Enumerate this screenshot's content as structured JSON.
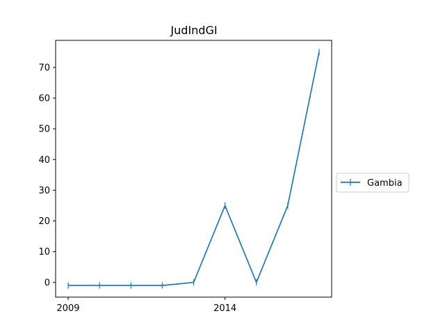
{
  "chart_data": {
    "type": "line",
    "title": "JudIndGI",
    "xlabel": "",
    "ylabel": "",
    "x": [
      2009,
      2010,
      2011,
      2012,
      2013,
      2014,
      2015,
      2016,
      2017
    ],
    "x_tick_values": [
      2009,
      2014
    ],
    "x_tick_labels": [
      "2009",
      "2014"
    ],
    "y_ticks": [
      0,
      10,
      20,
      30,
      40,
      50,
      60,
      70
    ],
    "y_tick_labels": [
      "0",
      "10",
      "20",
      "30",
      "40",
      "50",
      "60",
      "70"
    ],
    "xlim": [
      2008.6,
      2017.4
    ],
    "ylim": [
      -4.8,
      78.8
    ],
    "grid": false,
    "legend_position": "center-right-outside",
    "series": [
      {
        "name": "Gambia",
        "color": "#1f77b4",
        "marker": "vertical-line",
        "values": [
          -1,
          -1,
          -1,
          -1,
          0,
          25,
          0,
          25,
          75
        ]
      }
    ]
  }
}
